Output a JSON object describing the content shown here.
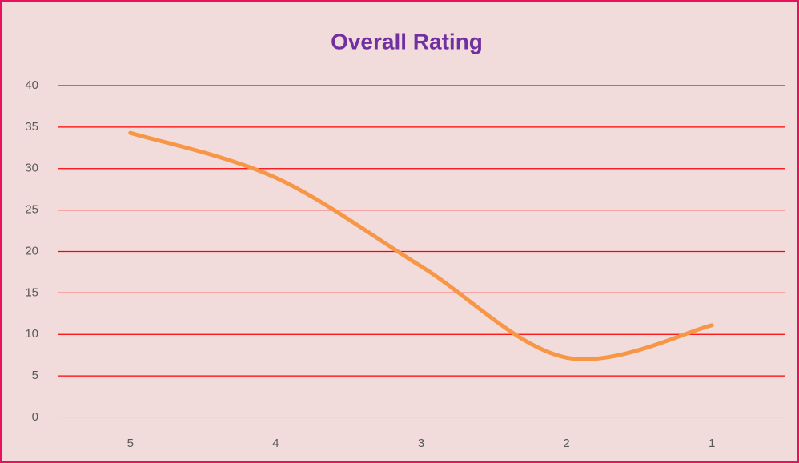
{
  "chart_data": {
    "type": "line",
    "title": "Overall Rating",
    "categories": [
      "5",
      "4",
      "3",
      "2",
      "1"
    ],
    "series": [
      {
        "name": "Overall Rating",
        "color": "#f79646",
        "values": [
          34.3,
          28.9,
          18.2,
          7.2,
          11.1
        ]
      }
    ],
    "ylim": [
      0,
      40
    ],
    "yticks": [
      0,
      5,
      10,
      15,
      20,
      25,
      30,
      35,
      40
    ],
    "grid": true,
    "grid_color": "#ff0000",
    "axis_color": "#d9d9d9",
    "background": "#f2dcdb",
    "border_color": "#e8115b",
    "smooth": true,
    "legend": false
  }
}
